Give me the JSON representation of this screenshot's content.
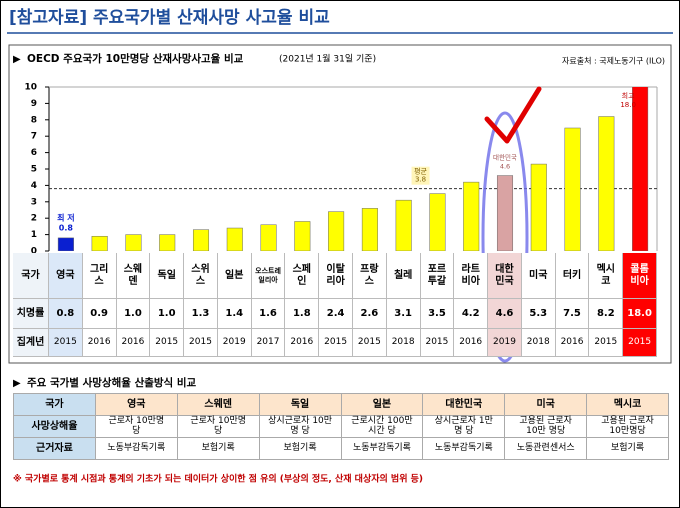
{
  "header": {
    "title": "[참고자료] 주요국가별 산재사망 사고율 비교"
  },
  "chart_data": {
    "type": "bar",
    "title": "OECD 주요국가 10만명당 산재사망사고율 비교",
    "subtitle": "(2021년 1월 31일 기준)",
    "source": "자료출처 : 국제노동기구 (ILO)",
    "row_labels": [
      "국가",
      "치명률",
      "집계년"
    ],
    "categories": [
      "영국",
      "그리스",
      "스웨덴",
      "독일",
      "스위스",
      "일본",
      "오스트레일리아",
      "스페인",
      "이탈리아",
      "프랑스",
      "칠레",
      "포르투갈",
      "라트비아",
      "대한민국",
      "미국",
      "터키",
      "멕시코",
      "콜롬비아"
    ],
    "values": [
      0.8,
      0.9,
      1,
      1,
      1.3,
      1.4,
      1.6,
      1.8,
      2.4,
      2.6,
      3.1,
      3.5,
      4.2,
      4.6,
      5.3,
      7.5,
      8.2,
      18
    ],
    "value_labels": [
      "0.8",
      "0.9",
      "1.0",
      "1.0",
      "1.3",
      "1.4",
      "1.6",
      "1.8",
      "2.4",
      "2.6",
      "3.1",
      "3.5",
      "4.2",
      "4.6",
      "5.3",
      "7.5",
      "8.2",
      "18.0"
    ],
    "years": [
      2015,
      2016,
      2016,
      2015,
      2015,
      2019,
      2017,
      2016,
      2015,
      2015,
      2018,
      2015,
      2016,
      2019,
      2018,
      2016,
      2015,
      2015
    ],
    "colors": [
      "#0a1fd0",
      "#ffff00",
      "#ffff00",
      "#ffff00",
      "#ffff00",
      "#ffff00",
      "#ffff00",
      "#ffff00",
      "#ffff00",
      "#ffff00",
      "#ffff00",
      "#ffff00",
      "#ffff00",
      "#d9a3a3",
      "#ffff00",
      "#ffff00",
      "#ffff00",
      "#ff0000"
    ],
    "ylim": [
      0,
      10
    ],
    "yticks": [
      0,
      1,
      2,
      3,
      4,
      5,
      6,
      7,
      8,
      9,
      10
    ],
    "reference_line": {
      "label": "평균",
      "value": 3.8
    },
    "min_label": "최 저",
    "max_label": "최고",
    "highlight_label": "대한민국"
  },
  "method_table": {
    "title": "주요 국가별 사망상해율 산출방식 비교",
    "header": [
      "국가",
      "영국",
      "스웨덴",
      "독일",
      "일본",
      "대한민국",
      "미국",
      "멕시코"
    ],
    "rows": [
      [
        "사망상해율",
        "근로자 10만명 당",
        "근로자 10만명 당",
        "상시근로자 10만 명 당",
        "근로시간 100만시간 당",
        "상시근로자 1만명 당",
        "고용된 근로자 10만 명당",
        "고용된 근로자 10만명당"
      ],
      [
        "근거자료",
        "노동부감독기록",
        "보험기록",
        "보험기록",
        "노동부감독기록",
        "노동부감독기록",
        "노동관련센서스",
        "보험기록"
      ]
    ]
  },
  "footnote": "※ 국가별로 통계 시점과 통계의 기초가 되는 데이터가 상이한 점 유의 (부상의 정도, 산재 대상자의 범위 등)"
}
